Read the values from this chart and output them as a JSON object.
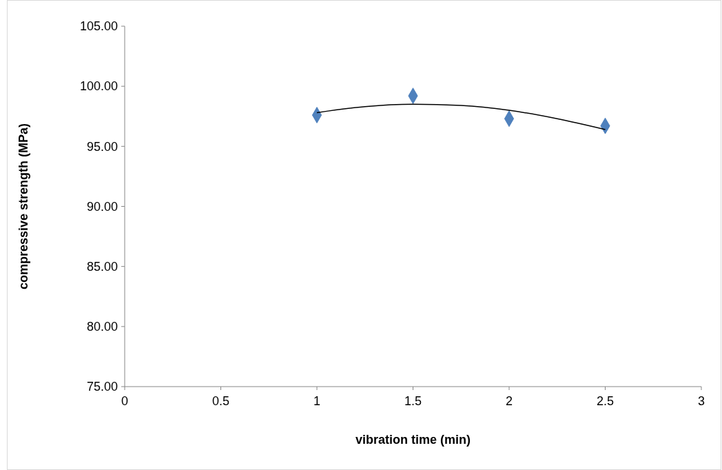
{
  "chart_data": {
    "type": "scatter",
    "xlabel": "vibration time (min)",
    "ylabel": "compressive strength (MPa)",
    "xlim": [
      0,
      3
    ],
    "xticks": [
      0,
      0.5,
      1,
      1.5,
      2,
      2.5,
      3
    ],
    "ylim": [
      75,
      105
    ],
    "yticks": [
      {
        "value": 75,
        "label": "75.00"
      },
      {
        "value": 80,
        "label": "80.00"
      },
      {
        "value": 85,
        "label": "85.00"
      },
      {
        "value": 90,
        "label": "90.00"
      },
      {
        "value": 95,
        "label": "95.00"
      },
      {
        "value": 100,
        "label": "100.00"
      },
      {
        "value": 105,
        "label": "105.00"
      }
    ],
    "grid": false,
    "series": [
      {
        "color": "#4f81bd",
        "marker": "diamond",
        "x": [
          1,
          1.5,
          2,
          2.5
        ],
        "values": [
          97.6,
          99.2,
          97.3,
          96.7
        ]
      },
      {
        "type": "line",
        "color": "#000000",
        "marker": "none",
        "line_style": "solid",
        "x": [
          1,
          1.25,
          1.5,
          1.75,
          2,
          2.25,
          2.5
        ],
        "values": [
          97.8,
          98.3,
          98.5,
          98.4,
          98.0,
          97.3,
          96.4
        ]
      }
    ]
  }
}
